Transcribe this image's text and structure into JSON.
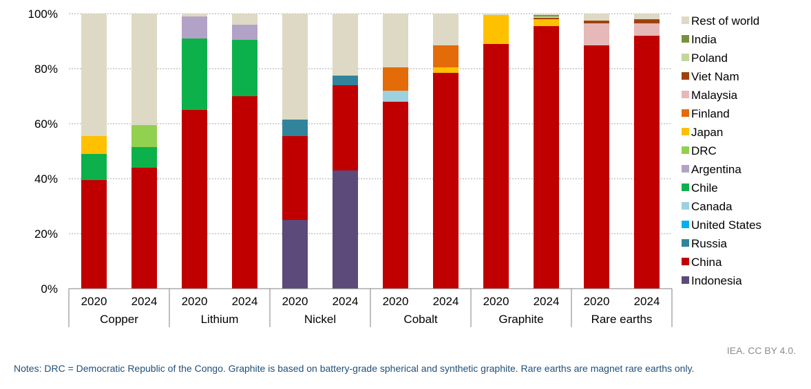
{
  "chart_data": {
    "type": "bar",
    "stacked": true,
    "percent": true,
    "ylim": [
      0,
      100
    ],
    "yticks": [
      "0%",
      "20%",
      "40%",
      "60%",
      "80%",
      "100%"
    ],
    "grid": true,
    "legend_position": "right",
    "groups": [
      "Copper",
      "Lithium",
      "Nickel",
      "Cobalt",
      "Graphite",
      "Rare earths"
    ],
    "years": [
      "2020",
      "2024"
    ],
    "categories": [
      "Copper 2020",
      "Copper 2024",
      "Lithium 2020",
      "Lithium 2024",
      "Nickel 2020",
      "Nickel 2024",
      "Cobalt 2020",
      "Cobalt 2024",
      "Graphite 2020",
      "Graphite 2024",
      "Rare earths 2020",
      "Rare earths 2024"
    ],
    "series": [
      {
        "name": "Indonesia",
        "color": "#5b4a7a",
        "values": [
          0,
          0,
          0,
          0,
          25,
          43,
          0,
          0,
          0,
          0,
          0,
          0
        ]
      },
      {
        "name": "China",
        "color": "#c00000",
        "values": [
          39.5,
          44,
          65,
          70,
          30.5,
          31,
          68,
          78.5,
          89,
          95.5,
          88.5,
          92
        ]
      },
      {
        "name": "Russia",
        "color": "#31849b",
        "values": [
          0,
          0,
          0,
          0,
          6,
          3.5,
          0,
          0,
          0,
          0,
          0,
          0
        ]
      },
      {
        "name": "United States",
        "color": "#00b0f0",
        "values": [
          0,
          0,
          0,
          0,
          0,
          0,
          0,
          0,
          0,
          0,
          0,
          0
        ]
      },
      {
        "name": "Canada",
        "color": "#9dd1e0",
        "values": [
          0,
          0,
          0,
          0,
          0,
          0,
          4,
          0,
          0,
          0,
          0,
          0
        ]
      },
      {
        "name": "Chile",
        "color": "#0db14b",
        "values": [
          9.5,
          7.5,
          26,
          20.5,
          0,
          0,
          0,
          0,
          0,
          0,
          0,
          0
        ]
      },
      {
        "name": "Argentina",
        "color": "#b3a2c7",
        "values": [
          0,
          0,
          8,
          5.5,
          0,
          0,
          0,
          0,
          0,
          0,
          0,
          0
        ]
      },
      {
        "name": "DRC",
        "color": "#92d050",
        "values": [
          0,
          8,
          0,
          0,
          0,
          0,
          0,
          0,
          0,
          0,
          0,
          0
        ]
      },
      {
        "name": "Japan",
        "color": "#ffc000",
        "values": [
          6.5,
          0,
          0,
          0,
          0,
          0,
          0,
          2,
          10.5,
          2.5,
          0,
          0
        ]
      },
      {
        "name": "Finland",
        "color": "#e36c09",
        "values": [
          0,
          0,
          0,
          0,
          0,
          0,
          8.5,
          8,
          0,
          0,
          0,
          0
        ]
      },
      {
        "name": "Malaysia",
        "color": "#e6b8b7",
        "values": [
          0,
          0,
          0,
          0,
          0,
          0,
          0,
          0,
          0,
          0,
          8,
          4.5
        ]
      },
      {
        "name": "Viet Nam",
        "color": "#a0410d",
        "values": [
          0,
          0,
          0,
          0,
          0,
          0,
          0,
          0,
          0,
          0.5,
          1,
          1.5
        ]
      },
      {
        "name": "Poland",
        "color": "#c3d69b",
        "values": [
          0,
          0,
          0,
          0,
          0,
          0,
          0,
          0,
          0,
          0.5,
          0,
          0
        ]
      },
      {
        "name": "India",
        "color": "#76923c",
        "values": [
          0,
          0,
          0,
          0,
          0,
          0,
          0,
          0,
          0,
          0.5,
          0,
          0
        ]
      },
      {
        "name": "Rest of world",
        "color": "#ddd9c4",
        "values": [
          44.5,
          40.5,
          1,
          4,
          38.5,
          22.5,
          19.5,
          11.5,
          0.5,
          0.5,
          2.5,
          2
        ]
      }
    ]
  },
  "credit": "IEA. CC BY 4.0.",
  "notes": "Notes: DRC = Democratic Republic of the Congo. Graphite is based on battery-grade spherical and synthetic graphite. Rare earths are magnet rare earths only."
}
